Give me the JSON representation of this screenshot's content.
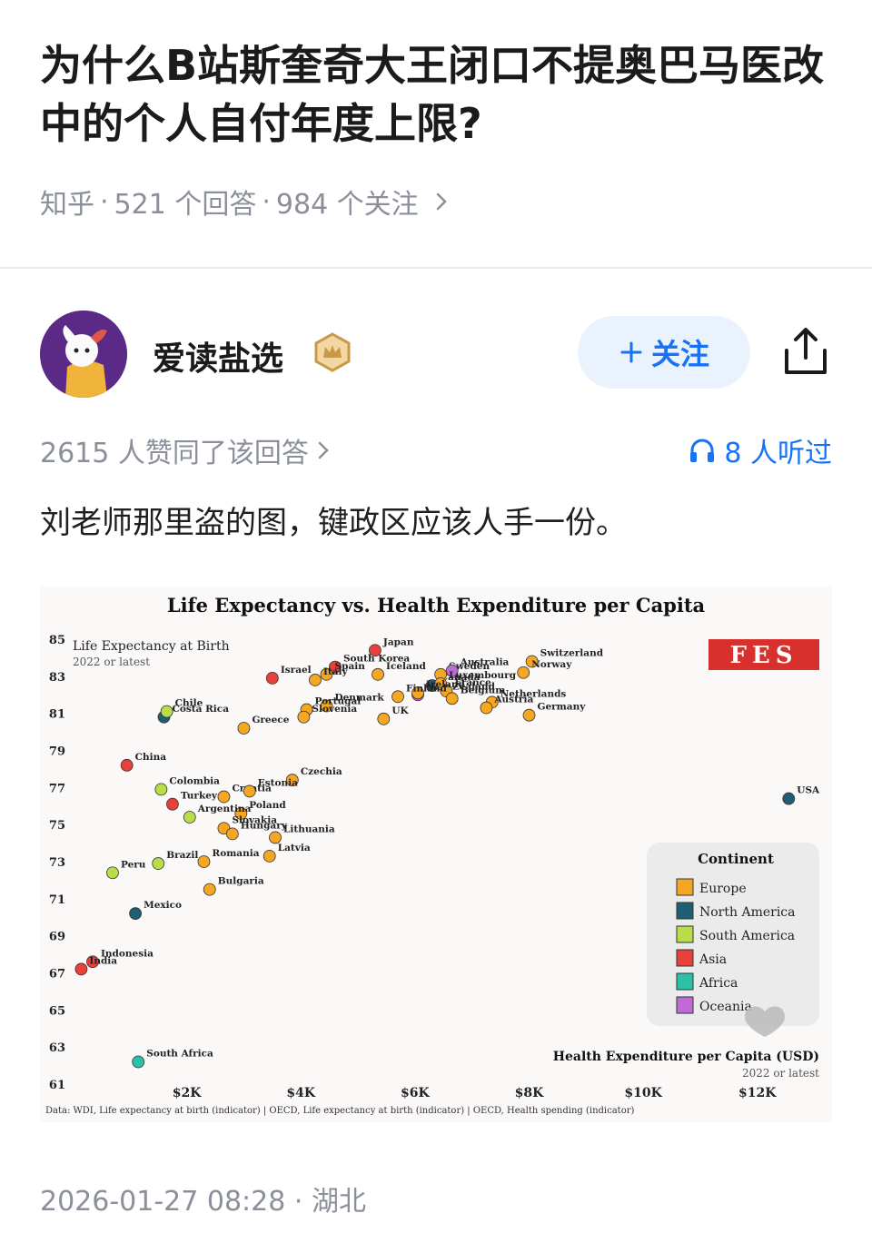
{
  "question": {
    "title": "为什么B站斯奎奇大王闭口不提奥巴马医改中的个人自付年度上限?",
    "source": "知乎",
    "answers": "521 个回答",
    "followers": "984 个关注",
    "sep": "·"
  },
  "answer": {
    "author": "爱读盐选",
    "follow_label": "关注",
    "upvote_text": "2615 人赞同了该回答",
    "listen_text": "8 人听过",
    "content": "刘老师那里盗的图，键政区应该人手一份。",
    "timestamp": "2026-01-27 08:28",
    "location": "湖北"
  },
  "icons": {
    "chevron": "chevron-right-icon",
    "plus": "plus-icon",
    "share": "share-icon",
    "headphones": "headphones-icon",
    "crown_badge": "crown-badge-icon",
    "heart": "heart-icon"
  },
  "colors": {
    "accent": "#1772f6",
    "follow_bg": "#e9f2fd",
    "muted": "#8a8f99"
  },
  "chart_data": {
    "type": "scatter",
    "title": "Life Expectancy vs. Health Expenditure per Capita",
    "ylabel": "Life Expectancy at Birth",
    "ylabel_note": "2022 or latest",
    "xlabel": "Health Expenditure per Capita (USD)",
    "xlabel_note": "2022 or latest",
    "logo": "FES",
    "source_note": "Data: WDI, Life expectancy at birth (indicator) | OECD, Life expectancy at birth (indicator) | OECD, Health spending (indicator)",
    "xlim": [
      0,
      12800
    ],
    "ylim": [
      61,
      85
    ],
    "xticks": [
      2000,
      4000,
      6000,
      8000,
      10000,
      12000
    ],
    "xtick_labels": [
      "$2K",
      "$4K",
      "$6K",
      "$8K",
      "$10K",
      "$12K"
    ],
    "yticks": [
      61,
      63,
      65,
      67,
      69,
      71,
      73,
      75,
      77,
      79,
      81,
      83,
      85
    ],
    "legend_title": "Continent",
    "legend_position": "bottom-right",
    "continents": [
      {
        "name": "Europe",
        "color": "#f5a623"
      },
      {
        "name": "North America",
        "color": "#1f5f73"
      },
      {
        "name": "South America",
        "color": "#b9dd4a"
      },
      {
        "name": "Asia",
        "color": "#e8403a"
      },
      {
        "name": "Africa",
        "color": "#2cc0a8"
      },
      {
        "name": "Oceania",
        "color": "#c06ad8"
      }
    ],
    "points": [
      {
        "name": "Japan",
        "x": 5300,
        "y": 84.4,
        "c": "Asia"
      },
      {
        "name": "South Korea",
        "x": 4600,
        "y": 83.5,
        "c": "Asia"
      },
      {
        "name": "Spain",
        "x": 4450,
        "y": 83.1,
        "c": "Europe"
      },
      {
        "name": "Italy",
        "x": 4250,
        "y": 82.8,
        "c": "Europe"
      },
      {
        "name": "Israel",
        "x": 3500,
        "y": 82.9,
        "c": "Asia"
      },
      {
        "name": "Canada",
        "x": 6300,
        "y": 82.5,
        "c": "North America"
      },
      {
        "name": "Sweden",
        "x": 6450,
        "y": 83.1,
        "c": "Europe"
      },
      {
        "name": "Australia",
        "x": 6650,
        "y": 83.3,
        "c": "Oceania"
      },
      {
        "name": "New Zealand",
        "x": 6050,
        "y": 82.0,
        "c": "Oceania"
      },
      {
        "name": "Iceland",
        "x": 5350,
        "y": 83.1,
        "c": "Europe"
      },
      {
        "name": "Luxembourg",
        "x": 6450,
        "y": 82.6,
        "c": "Europe"
      },
      {
        "name": "France",
        "x": 6550,
        "y": 82.2,
        "c": "Europe"
      },
      {
        "name": "Belgium",
        "x": 6650,
        "y": 81.8,
        "c": "Europe"
      },
      {
        "name": "Ireland",
        "x": 6050,
        "y": 82.1,
        "c": "Europe"
      },
      {
        "name": "Switzerland",
        "x": 8050,
        "y": 83.8,
        "c": "Europe"
      },
      {
        "name": "Norway",
        "x": 7900,
        "y": 83.2,
        "c": "Europe"
      },
      {
        "name": "Netherlands",
        "x": 7350,
        "y": 81.6,
        "c": "Europe"
      },
      {
        "name": "Austria",
        "x": 7250,
        "y": 81.3,
        "c": "Europe"
      },
      {
        "name": "Germany",
        "x": 8000,
        "y": 80.9,
        "c": "Europe"
      },
      {
        "name": "Finland",
        "x": 5700,
        "y": 81.9,
        "c": "Europe"
      },
      {
        "name": "Denmark",
        "x": 4450,
        "y": 81.4,
        "c": "Europe"
      },
      {
        "name": "UK",
        "x": 5450,
        "y": 80.7,
        "c": "Europe"
      },
      {
        "name": "Portugal",
        "x": 4100,
        "y": 81.2,
        "c": "Europe"
      },
      {
        "name": "Slovenia",
        "x": 4050,
        "y": 80.8,
        "c": "Europe"
      },
      {
        "name": "Costa Rica",
        "x": 1600,
        "y": 80.8,
        "c": "North America"
      },
      {
        "name": "Chile",
        "x": 1650,
        "y": 81.1,
        "c": "South America"
      },
      {
        "name": "Greece",
        "x": 3000,
        "y": 80.2,
        "c": "Europe"
      },
      {
        "name": "China",
        "x": 950,
        "y": 78.2,
        "c": "Asia"
      },
      {
        "name": "Czechia",
        "x": 3850,
        "y": 77.4,
        "c": "Europe"
      },
      {
        "name": "Colombia",
        "x": 1550,
        "y": 76.9,
        "c": "South America"
      },
      {
        "name": "Croatia",
        "x": 2650,
        "y": 76.5,
        "c": "Europe"
      },
      {
        "name": "Estonia",
        "x": 3100,
        "y": 76.8,
        "c": "Europe"
      },
      {
        "name": "Turkey",
        "x": 1750,
        "y": 76.1,
        "c": "Asia"
      },
      {
        "name": "Poland",
        "x": 2950,
        "y": 75.6,
        "c": "Europe"
      },
      {
        "name": "Argentina",
        "x": 2050,
        "y": 75.4,
        "c": "South America"
      },
      {
        "name": "Slovakia",
        "x": 2650,
        "y": 74.8,
        "c": "Europe"
      },
      {
        "name": "Hungary",
        "x": 2800,
        "y": 74.5,
        "c": "Europe"
      },
      {
        "name": "Lithuania",
        "x": 3550,
        "y": 74.3,
        "c": "Europe"
      },
      {
        "name": "Latvia",
        "x": 3450,
        "y": 73.3,
        "c": "Europe"
      },
      {
        "name": "Brazil",
        "x": 1500,
        "y": 72.9,
        "c": "South America"
      },
      {
        "name": "Romania",
        "x": 2300,
        "y": 73.0,
        "c": "Europe"
      },
      {
        "name": "Peru",
        "x": 700,
        "y": 72.4,
        "c": "South America"
      },
      {
        "name": "Bulgaria",
        "x": 2400,
        "y": 71.5,
        "c": "Europe"
      },
      {
        "name": "Mexico",
        "x": 1100,
        "y": 70.2,
        "c": "North America"
      },
      {
        "name": "Indonesia",
        "x": 350,
        "y": 67.6,
        "c": "Asia"
      },
      {
        "name": "India",
        "x": 150,
        "y": 67.2,
        "c": "Asia"
      },
      {
        "name": "South Africa",
        "x": 1150,
        "y": 62.2,
        "c": "Africa"
      },
      {
        "name": "USA",
        "x": 12550,
        "y": 76.4,
        "c": "North America"
      }
    ]
  }
}
